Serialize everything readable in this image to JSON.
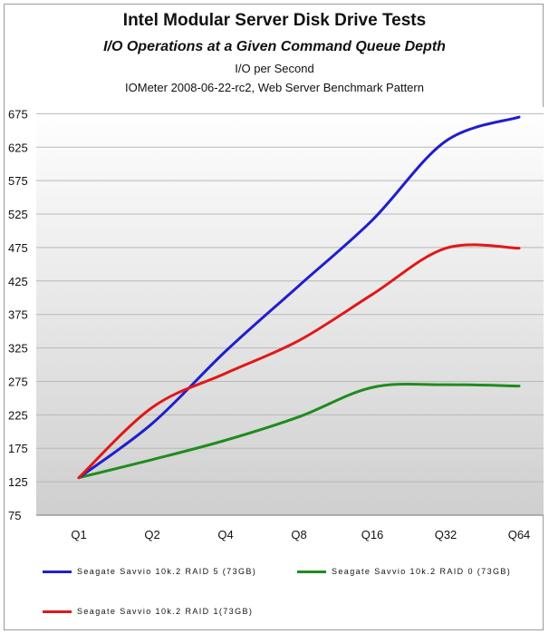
{
  "chart_data": {
    "type": "line",
    "title": "Intel Modular Server Disk Drive Tests",
    "subtitle": "I/O Operations at a Given Command Queue Depth",
    "ylabel": "I/O per Second",
    "subtitle2": "IOMeter 2008-06-22-rc2, Web Server Benchmark Pattern",
    "xlabel": "",
    "categories": [
      "Q1",
      "Q2",
      "Q4",
      "Q8",
      "Q16",
      "Q32",
      "Q64"
    ],
    "yticks": [
      75,
      125,
      175,
      225,
      275,
      325,
      375,
      425,
      475,
      525,
      575,
      625,
      675
    ],
    "ylim": [
      75,
      685
    ],
    "grid": true,
    "legend_position": "bottom",
    "series": [
      {
        "name": "Seagate Savvio 10k.2 RAID 5 (73GB)",
        "color": "#1f1fcc",
        "values": [
          131,
          212,
          320,
          418,
          516,
          634,
          670
        ]
      },
      {
        "name": "Seagate Savvio 10k.2 RAID 0 (73GB)",
        "color": "#1e8c1e",
        "values": [
          131,
          158,
          187,
          222,
          266,
          270,
          268
        ]
      },
      {
        "name": "Seagate Savvio 10k.2 RAID 1(73GB)",
        "color": "#e01818",
        "values": [
          131,
          236,
          287,
          336,
          405,
          474,
          474
        ]
      }
    ]
  }
}
